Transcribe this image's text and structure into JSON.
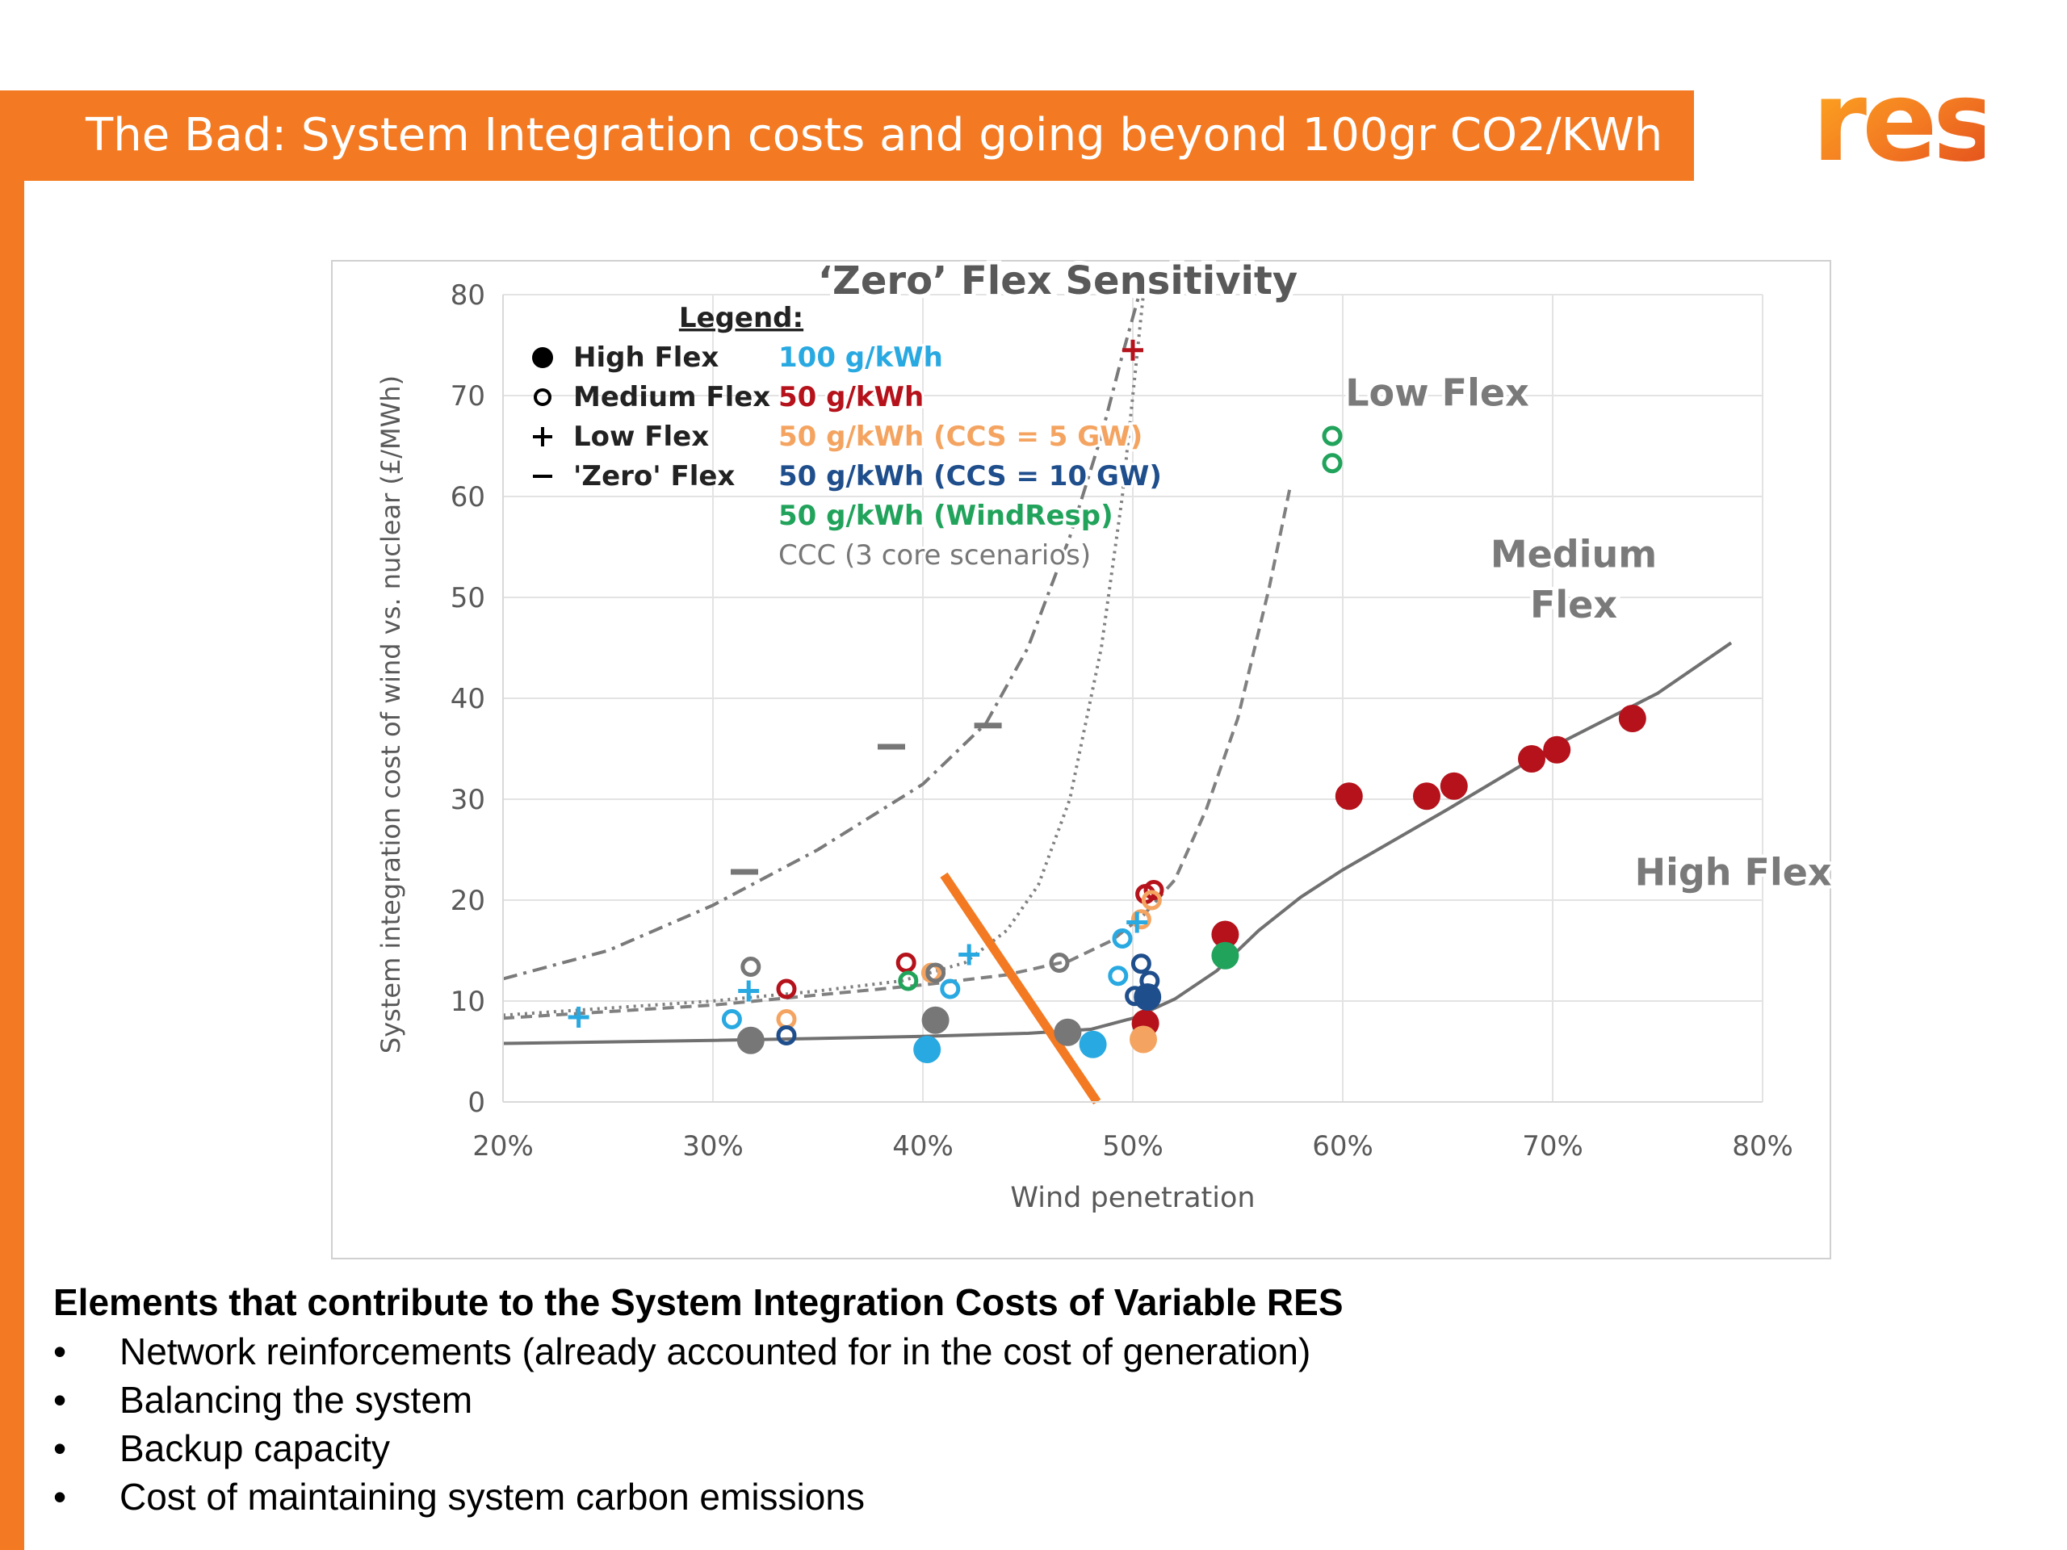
{
  "slide": {
    "title": "The Bad: System Integration costs and going beyond 100gr CO2/KWh",
    "logo_text": "res",
    "colors": {
      "brand_orange": "#f37a22",
      "title_text": "#ffffff"
    }
  },
  "chart_data": {
    "type": "scatter",
    "title": "‘Zero’ Flex Sensitivity",
    "xlabel": "Wind penetration",
    "ylabel": "System integration cost of wind vs. nuclear (£/MWh)",
    "xlim": [
      20,
      80
    ],
    "ylim": [
      0,
      80
    ],
    "x_ticks": [
      "20%",
      "30%",
      "40%",
      "50%",
      "60%",
      "70%",
      "80%"
    ],
    "y_ticks": [
      "0",
      "10",
      "20",
      "30",
      "40",
      "50",
      "60",
      "70",
      "80"
    ],
    "grid": true,
    "legend": {
      "heading": "Legend:",
      "placement": "top-left",
      "markers": [
        {
          "symbol": "●",
          "label": "High Flex"
        },
        {
          "symbol": "o",
          "label": "Medium Flex"
        },
        {
          "symbol": "+",
          "label": "Low Flex"
        },
        {
          "symbol": "–",
          "label": "'Zero' Flex"
        }
      ],
      "scenarios": [
        {
          "label": "100 g/kWh",
          "color": "#29a9e1"
        },
        {
          "label": "50 g/kWh",
          "color": "#b5121b"
        },
        {
          "label": "50 g/kWh (CCS = 5 GW)",
          "color": "#f4a460"
        },
        {
          "label": "50 g/kWh (CCS = 10 GW)",
          "color": "#1f4e8c"
        },
        {
          "label": "50 g/kWh (WindResp)",
          "color": "#21a35b"
        },
        {
          "label": "CCC (3 core scenarios)",
          "color": "#777777"
        }
      ]
    },
    "curve_labels": [
      {
        "text": "Low Flex",
        "x": 64.5,
        "y": 69
      },
      {
        "text": "Medium",
        "x": 71,
        "y": 53
      },
      {
        "text": "Flex",
        "x": 71,
        "y": 48
      },
      {
        "text": "High Flex",
        "x": 78.6,
        "y": 21.5
      }
    ],
    "curves": [
      {
        "name": "High Flex",
        "style": "solid",
        "points": [
          [
            20,
            5.8
          ],
          [
            30,
            6.1
          ],
          [
            40,
            6.5
          ],
          [
            45,
            6.8
          ],
          [
            48,
            7.2
          ],
          [
            50,
            8.3
          ],
          [
            52,
            10.2
          ],
          [
            54,
            13
          ],
          [
            56,
            17
          ],
          [
            58,
            20.3
          ],
          [
            60,
            23
          ],
          [
            65,
            29
          ],
          [
            70,
            35.2
          ],
          [
            75,
            40.5
          ],
          [
            78.5,
            45.5
          ]
        ]
      },
      {
        "name": "Medium Flex",
        "style": "dashed",
        "points": [
          [
            20,
            8.3
          ],
          [
            30,
            9.6
          ],
          [
            40,
            11.6
          ],
          [
            44,
            12.6
          ],
          [
            47,
            14
          ],
          [
            49,
            16
          ],
          [
            50.5,
            18.5
          ],
          [
            52,
            22
          ],
          [
            53.5,
            29
          ],
          [
            55,
            38
          ],
          [
            56.5,
            51
          ],
          [
            57.5,
            61
          ]
        ]
      },
      {
        "name": "Low Flex",
        "style": "dotted",
        "points": [
          [
            20,
            8.6
          ],
          [
            30,
            10
          ],
          [
            35,
            11
          ],
          [
            39,
            12
          ],
          [
            42,
            13.8
          ],
          [
            44,
            17
          ],
          [
            45.5,
            21.5
          ],
          [
            47,
            30
          ],
          [
            48.5,
            45
          ],
          [
            49.5,
            60
          ],
          [
            50.5,
            80
          ]
        ]
      },
      {
        "name": "'Zero' Flex",
        "style": "dashdot",
        "points": [
          [
            20,
            12.2
          ],
          [
            25,
            15
          ],
          [
            30,
            19.5
          ],
          [
            35,
            25
          ],
          [
            40,
            31.5
          ],
          [
            43,
            37.5
          ],
          [
            45,
            45
          ],
          [
            47,
            56
          ],
          [
            48.5,
            66
          ],
          [
            49.5,
            74
          ],
          [
            50.3,
            80
          ]
        ]
      },
      {
        "name": "threshold",
        "style": "highlight",
        "points": [
          [
            41,
            22.5
          ],
          [
            48.3,
            0
          ]
        ]
      }
    ],
    "series": [
      {
        "name": "100 g/kWh",
        "marker": "filled",
        "points": [
          [
            40.2,
            5.2
          ],
          [
            48.1,
            5.7
          ]
        ]
      },
      {
        "name": "50 g/kWh",
        "marker": "filled",
        "points": [
          [
            50.6,
            7.8
          ],
          [
            54.4,
            16.6
          ],
          [
            60.3,
            30.3
          ],
          [
            64,
            30.3
          ],
          [
            65.3,
            31.3
          ],
          [
            69,
            34
          ],
          [
            70.2,
            34.9
          ],
          [
            73.8,
            38
          ]
        ]
      },
      {
        "name": "50 g/kWh (CCS = 5 GW)",
        "marker": "filled",
        "points": [
          [
            50.5,
            6.2
          ]
        ]
      },
      {
        "name": "50 g/kWh (CCS = 10 GW)",
        "marker": "filled",
        "points": [
          [
            50.7,
            10.4
          ]
        ]
      },
      {
        "name": "50 g/kWh (WindResp)",
        "marker": "filled",
        "points": [
          [
            54.4,
            14.5
          ]
        ]
      },
      {
        "name": "CCC (3 core scenarios)",
        "marker": "filled",
        "points": [
          [
            31.8,
            6.1
          ],
          [
            40.6,
            8.1
          ],
          [
            46.9,
            6.9
          ]
        ]
      },
      {
        "name": "100 g/kWh",
        "marker": "open",
        "points": [
          [
            30.9,
            8.2
          ],
          [
            41.3,
            11.2
          ],
          [
            49.5,
            16.2
          ],
          [
            49.3,
            12.5
          ]
        ]
      },
      {
        "name": "50 g/kWh",
        "marker": "open",
        "points": [
          [
            33.5,
            11.2
          ],
          [
            39.2,
            13.8
          ],
          [
            50.6,
            20.6
          ],
          [
            51,
            21
          ]
        ]
      },
      {
        "name": "50 g/kWh (CCS = 5 GW)",
        "marker": "open",
        "points": [
          [
            33.5,
            8.2
          ],
          [
            40.4,
            12.8
          ],
          [
            50.4,
            18.1
          ],
          [
            50.9,
            20
          ]
        ]
      },
      {
        "name": "50 g/kWh (CCS = 10 GW)",
        "marker": "open",
        "points": [
          [
            33.5,
            6.6
          ],
          [
            50.4,
            13.7
          ],
          [
            50.8,
            12
          ],
          [
            50.1,
            10.5
          ]
        ]
      },
      {
        "name": "50 g/kWh (WindResp)",
        "marker": "open",
        "points": [
          [
            59.5,
            66
          ],
          [
            59.5,
            63.3
          ],
          [
            39.3,
            12
          ]
        ]
      },
      {
        "name": "CCC (3 core scenarios)",
        "marker": "open",
        "points": [
          [
            31.8,
            13.4
          ],
          [
            46.5,
            13.8
          ],
          [
            40.6,
            12.8
          ]
        ]
      },
      {
        "name": "100 g/kWh",
        "marker": "plus",
        "points": [
          [
            23.6,
            8.4
          ],
          [
            31.7,
            11
          ],
          [
            42.2,
            14.6
          ],
          [
            50.2,
            17.8
          ]
        ]
      },
      {
        "name": "50 g/kWh",
        "marker": "plus",
        "points": [
          [
            50,
            74.5
          ]
        ]
      },
      {
        "name": "CCC (3 core scenarios)",
        "marker": "dash",
        "points": [
          [
            31.5,
            22.8
          ],
          [
            38.5,
            35.2
          ],
          [
            43.1,
            37.3
          ]
        ]
      }
    ]
  },
  "notes": {
    "heading": "Elements that contribute to the System Integration Costs of Variable RES",
    "bullet_symbol": "•",
    "items": [
      "Network reinforcements (already accounted for in the cost of generation)",
      "Balancing the system",
      "Backup capacity",
      "Cost of maintaining system carbon emissions"
    ]
  }
}
